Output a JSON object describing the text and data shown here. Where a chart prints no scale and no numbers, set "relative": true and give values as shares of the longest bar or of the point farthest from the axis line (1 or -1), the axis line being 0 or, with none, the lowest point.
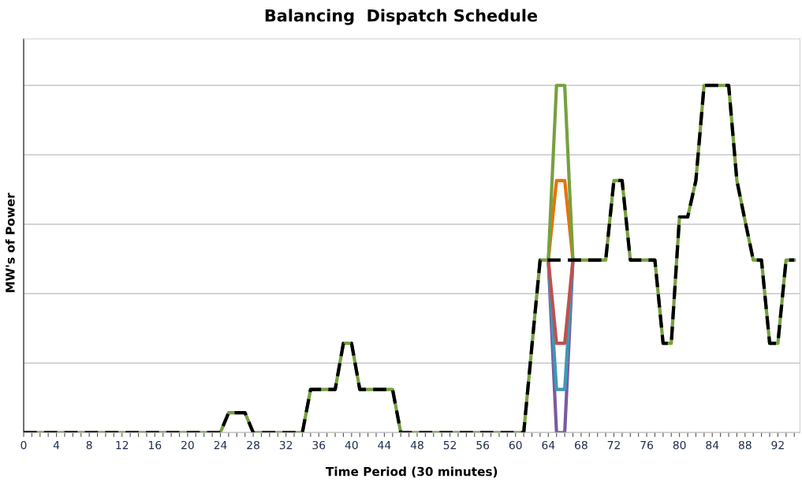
{
  "chart_data": {
    "type": "line",
    "title": "Balancing  Dispatch Schedule",
    "xlabel": "Time Period (30 minutes)",
    "ylabel": "MW's of Power",
    "relative": true,
    "grid": "y",
    "x": [
      0,
      1,
      2,
      3,
      4,
      5,
      6,
      7,
      8,
      9,
      10,
      11,
      12,
      13,
      14,
      15,
      16,
      17,
      18,
      19,
      20,
      21,
      22,
      23,
      24,
      25,
      26,
      27,
      28,
      29,
      30,
      31,
      32,
      33,
      34,
      35,
      36,
      37,
      38,
      39,
      40,
      41,
      42,
      43,
      44,
      45,
      46,
      47,
      48,
      49,
      50,
      51,
      52,
      53,
      54,
      55,
      56,
      57,
      58,
      59,
      60,
      61,
      62,
      63,
      64,
      65,
      66,
      67,
      68,
      69,
      70,
      71,
      72,
      73,
      74,
      75,
      76,
      77,
      78,
      79,
      80,
      81,
      82,
      83,
      84,
      85,
      86,
      87,
      88,
      89,
      90,
      91,
      92,
      93,
      94
    ],
    "xlim": [
      0,
      94.7
    ],
    "xticks": [
      0,
      {
        "value": 1,
        "label": null
      },
      {
        "value": 2,
        "label": null
      },
      {
        "value": 3,
        "label": null
      },
      4,
      {
        "value": 5,
        "label": null
      },
      {
        "value": 6,
        "label": null
      },
      {
        "value": 7,
        "label": null
      },
      8,
      {
        "value": 9,
        "label": null
      },
      {
        "value": 10,
        "label": null
      },
      {
        "value": 11,
        "label": null
      },
      12,
      {
        "value": 13,
        "label": null
      },
      {
        "value": 14,
        "label": null
      },
      {
        "value": 15,
        "label": null
      },
      16,
      {
        "value": 17,
        "label": null
      },
      {
        "value": 18,
        "label": null
      },
      {
        "value": 19,
        "label": null
      },
      20,
      {
        "value": 21,
        "label": null
      },
      {
        "value": 22,
        "label": null
      },
      {
        "value": 23,
        "label": null
      },
      24,
      {
        "value": 25,
        "label": null
      },
      {
        "value": 26,
        "label": null
      },
      {
        "value": 27,
        "label": null
      },
      28,
      {
        "value": 29,
        "label": null
      },
      {
        "value": 30,
        "label": null
      },
      {
        "value": 31,
        "label": null
      },
      32,
      {
        "value": 33,
        "label": null
      },
      {
        "value": 34,
        "label": null
      },
      {
        "value": 35,
        "label": null
      },
      36,
      {
        "value": 37,
        "label": null
      },
      {
        "value": 38,
        "label": null
      },
      {
        "value": 39,
        "label": null
      },
      40,
      {
        "value": 41,
        "label": null
      },
      {
        "value": 42,
        "label": null
      },
      {
        "value": 43,
        "label": null
      },
      44,
      {
        "value": 45,
        "label": null
      },
      {
        "value": 46,
        "label": null
      },
      {
        "value": 47,
        "label": null
      },
      48,
      {
        "value": 49,
        "label": null
      },
      {
        "value": 50,
        "label": null
      },
      {
        "value": 51,
        "label": null
      },
      52,
      {
        "value": 53,
        "label": null
      },
      {
        "value": 54,
        "label": null
      },
      {
        "value": 55,
        "label": null
      },
      56,
      {
        "value": 57,
        "label": null
      },
      {
        "value": 58,
        "label": null
      },
      {
        "value": 59,
        "label": null
      },
      60,
      {
        "value": 61,
        "label": null
      },
      {
        "value": 62,
        "label": null
      },
      {
        "value": 63,
        "label": null
      },
      64,
      {
        "value": 65,
        "label": null
      },
      {
        "value": 66,
        "label": null
      },
      {
        "value": 67,
        "label": null
      },
      68,
      {
        "value": 69,
        "label": null
      },
      {
        "value": 70,
        "label": null
      },
      {
        "value": 71,
        "label": null
      },
      72,
      {
        "value": 73,
        "label": null
      },
      {
        "value": 74,
        "label": null
      },
      {
        "value": 75,
        "label": null
      },
      76,
      {
        "value": 77,
        "label": null
      },
      {
        "value": 78,
        "label": null
      },
      {
        "value": 79,
        "label": null
      },
      80,
      {
        "value": 81,
        "label": null
      },
      {
        "value": 82,
        "label": null
      },
      {
        "value": 83,
        "label": null
      },
      84,
      {
        "value": 85,
        "label": null
      },
      {
        "value": 86,
        "label": null
      },
      {
        "value": 87,
        "label": null
      },
      88,
      {
        "value": 89,
        "label": null
      },
      {
        "value": 90,
        "label": null
      },
      {
        "value": 91,
        "label": null
      },
      92,
      {
        "value": 93,
        "label": null
      },
      {
        "value": 94,
        "label": null
      }
    ],
    "tick_labels": "x",
    "series": [
      {
        "color": "#7b5aa0",
        "values": [
          null,
          null,
          null,
          null,
          null,
          null,
          null,
          null,
          null,
          null,
          null,
          null,
          null,
          null,
          null,
          null,
          null,
          null,
          null,
          null,
          null,
          null,
          null,
          null,
          null,
          null,
          null,
          null,
          null,
          null,
          null,
          null,
          null,
          null,
          null,
          null,
          null,
          null,
          null,
          null,
          null,
          null,
          null,
          null,
          null,
          null,
          null,
          null,
          null,
          null,
          null,
          null,
          null,
          null,
          null,
          null,
          null,
          null,
          null,
          null,
          null,
          null,
          null,
          null,
          0.497,
          0,
          0,
          0.497,
          null,
          null,
          null,
          null,
          null,
          null,
          null,
          null,
          null,
          null,
          null,
          null,
          null,
          null,
          null,
          null,
          null,
          null,
          null,
          null,
          null,
          null,
          null,
          null,
          null,
          null,
          null
        ]
      },
      {
        "color": "#3c9ab4",
        "values": [
          null,
          null,
          null,
          null,
          null,
          null,
          null,
          null,
          null,
          null,
          null,
          null,
          null,
          null,
          null,
          null,
          null,
          null,
          null,
          null,
          null,
          null,
          null,
          null,
          null,
          null,
          null,
          null,
          null,
          null,
          null,
          null,
          null,
          null,
          null,
          null,
          null,
          null,
          null,
          null,
          null,
          null,
          null,
          null,
          null,
          null,
          null,
          null,
          null,
          null,
          null,
          null,
          null,
          null,
          null,
          null,
          null,
          null,
          null,
          null,
          null,
          null,
          null,
          null,
          0.497,
          0.124,
          0.124,
          0.497,
          null,
          null,
          null,
          null,
          null,
          null,
          null,
          null,
          null,
          null,
          null,
          null,
          null,
          null,
          null,
          null,
          null,
          null,
          null,
          null,
          null,
          null,
          null,
          null,
          null,
          null,
          null
        ]
      },
      {
        "color": "#c0504d",
        "values": [
          null,
          null,
          null,
          null,
          null,
          null,
          null,
          null,
          null,
          null,
          null,
          null,
          null,
          null,
          null,
          null,
          null,
          null,
          null,
          null,
          null,
          null,
          null,
          null,
          null,
          null,
          null,
          null,
          null,
          null,
          null,
          null,
          null,
          null,
          null,
          null,
          null,
          null,
          null,
          null,
          null,
          null,
          null,
          null,
          null,
          null,
          null,
          null,
          null,
          null,
          null,
          null,
          null,
          null,
          null,
          null,
          null,
          null,
          null,
          null,
          null,
          null,
          null,
          null,
          0.497,
          0.257,
          0.257,
          0.497,
          null,
          null,
          null,
          null,
          null,
          null,
          null,
          null,
          null,
          null,
          null,
          null,
          null,
          null,
          null,
          null,
          null,
          null,
          null,
          null,
          null,
          null,
          null,
          null,
          null,
          null,
          null
        ]
      },
      {
        "color": "#e8720c",
        "values": [
          null,
          null,
          null,
          null,
          null,
          null,
          null,
          null,
          null,
          null,
          null,
          null,
          null,
          null,
          null,
          null,
          null,
          null,
          null,
          null,
          null,
          null,
          null,
          null,
          null,
          null,
          null,
          null,
          null,
          null,
          null,
          null,
          null,
          null,
          null,
          null,
          null,
          null,
          null,
          null,
          null,
          null,
          null,
          null,
          null,
          null,
          null,
          null,
          null,
          null,
          null,
          null,
          null,
          null,
          null,
          null,
          null,
          null,
          null,
          null,
          null,
          null,
          null,
          null,
          0.497,
          0.726,
          0.726,
          0.497,
          null,
          null,
          null,
          null,
          null,
          null,
          null,
          null,
          null,
          null,
          null,
          null,
          null,
          null,
          null,
          null,
          null,
          null,
          null,
          null,
          null,
          null,
          null,
          null,
          null,
          null,
          null
        ]
      },
      {
        "color": "#77a040",
        "values": [
          0,
          0,
          0,
          0,
          0,
          0,
          0,
          0,
          0,
          0,
          0,
          0,
          0,
          0,
          0,
          0,
          0,
          0,
          0,
          0,
          0,
          0,
          0,
          0,
          0,
          0.057,
          0.057,
          0.057,
          0,
          0,
          0,
          0,
          0,
          0,
          0,
          0.124,
          0.124,
          0.124,
          0.124,
          0.257,
          0.257,
          0.124,
          0.124,
          0.124,
          0.124,
          0.124,
          0,
          0,
          0,
          0,
          0,
          0,
          0,
          0,
          0,
          0,
          0,
          0,
          0,
          0,
          0,
          0,
          0.25,
          0.497,
          0.497,
          1,
          1,
          0.497,
          0.497,
          0.497,
          0.497,
          0.497,
          0.726,
          0.726,
          0.497,
          0.497,
          0.497,
          0.497,
          0.257,
          0.257,
          0.621,
          0.621,
          0.726,
          1,
          1,
          1,
          1,
          0.726,
          0.61,
          0.497,
          0.497,
          0.257,
          0.257,
          0.497,
          0.497
        ]
      },
      {
        "color": "#000000",
        "line_style": "dashed",
        "values": [
          0,
          0,
          0,
          0,
          0,
          0,
          0,
          0,
          0,
          0,
          0,
          0,
          0,
          0,
          0,
          0,
          0,
          0,
          0,
          0,
          0,
          0,
          0,
          0,
          0,
          0.057,
          0.057,
          0.057,
          0,
          0,
          0,
          0,
          0,
          0,
          0,
          0.124,
          0.124,
          0.124,
          0.124,
          0.257,
          0.257,
          0.124,
          0.124,
          0.124,
          0.124,
          0.124,
          0,
          0,
          0,
          0,
          0,
          0,
          0,
          0,
          0,
          0,
          0,
          0,
          0,
          0,
          0,
          0,
          0.25,
          0.497,
          0.497,
          0.497,
          0.497,
          0.497,
          0.497,
          0.497,
          0.497,
          0.497,
          0.726,
          0.726,
          0.497,
          0.497,
          0.497,
          0.497,
          0.257,
          0.257,
          0.621,
          0.621,
          0.726,
          1,
          1,
          1,
          1,
          0.726,
          0.61,
          0.497,
          0.497,
          0.257,
          0.257,
          0.497,
          0.497
        ]
      }
    ]
  }
}
